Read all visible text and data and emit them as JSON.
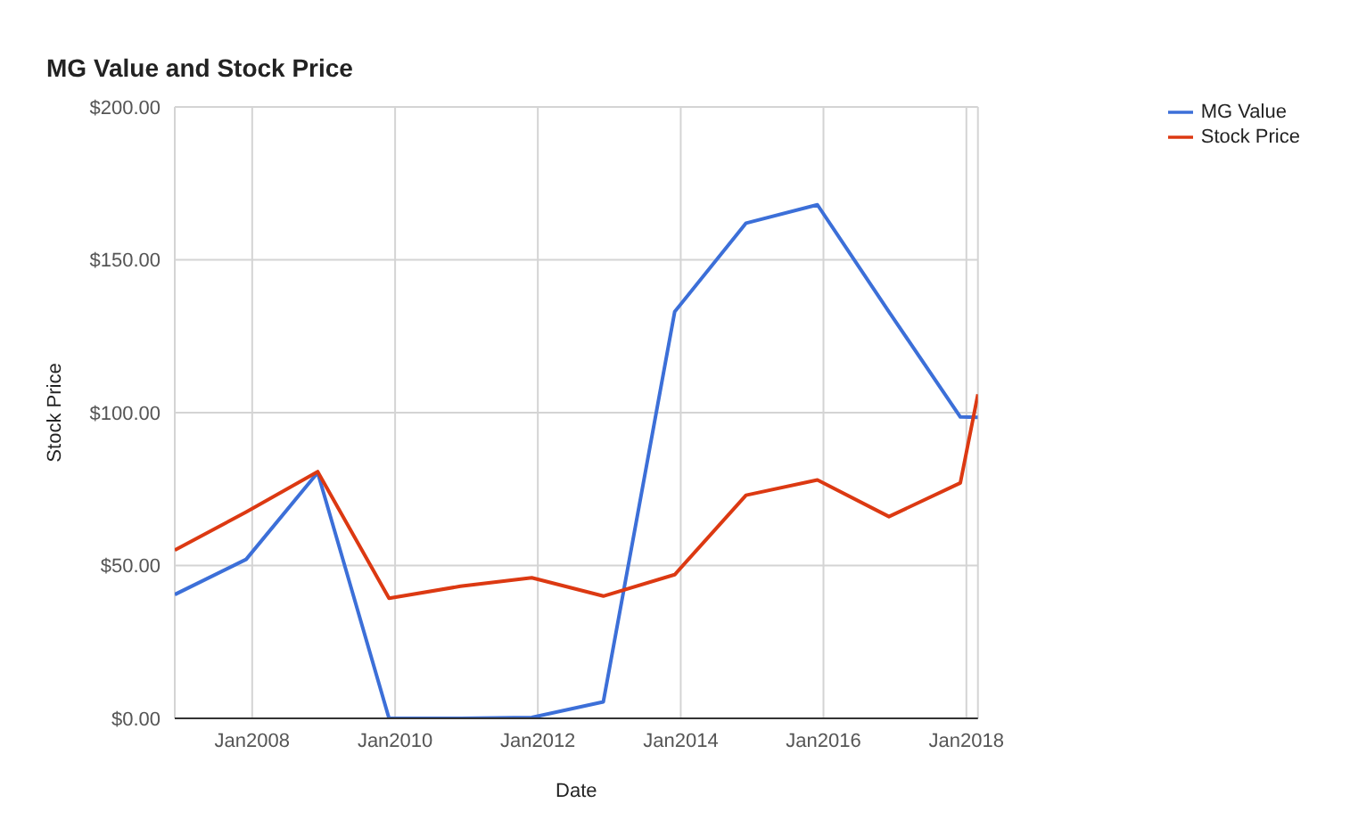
{
  "chart_data": {
    "type": "line",
    "title": "MG Value and Stock Price",
    "xlabel": "Date",
    "ylabel": "Stock Price",
    "x": [
      "2006-12",
      "2007-12",
      "2008-12",
      "2009-12",
      "2010-12",
      "2011-12",
      "2012-12",
      "2013-12",
      "2014-12",
      "2015-12",
      "2016-12",
      "2017-12",
      "2018-03"
    ],
    "series": [
      {
        "name": "MG Value",
        "color": "#3c6fd8",
        "values": [
          40.5,
          52,
          80.4,
          0,
          0,
          0.3,
          5.4,
          133,
          162,
          168,
          133,
          98.6,
          98.5
        ]
      },
      {
        "name": "Stock Price",
        "color": "#dc3912",
        "values": [
          55,
          67.5,
          80.7,
          39.3,
          43.2,
          46,
          40,
          47,
          73,
          78,
          66,
          77,
          106
        ]
      }
    ],
    "xlim": [
      "2006-12",
      "2018-03"
    ],
    "xticks": [
      {
        "value": "2008-01",
        "label": "Jan2008"
      },
      {
        "value": "2010-01",
        "label": "Jan2010"
      },
      {
        "value": "2012-01",
        "label": "Jan2012"
      },
      {
        "value": "2014-01",
        "label": "Jan2014"
      },
      {
        "value": "2016-01",
        "label": "Jan2016"
      },
      {
        "value": "2018-01",
        "label": "Jan2018"
      }
    ],
    "ylim": [
      0,
      200
    ],
    "yticks": [
      {
        "value": 0,
        "label": "$0.00"
      },
      {
        "value": 50,
        "label": "$50.00"
      },
      {
        "value": 100,
        "label": "$100.00"
      },
      {
        "value": 150,
        "label": "$150.00"
      },
      {
        "value": 200,
        "label": "$200.00"
      }
    ],
    "grid": true,
    "legend": "top right",
    "marker": "none",
    "line_style": "solid"
  }
}
